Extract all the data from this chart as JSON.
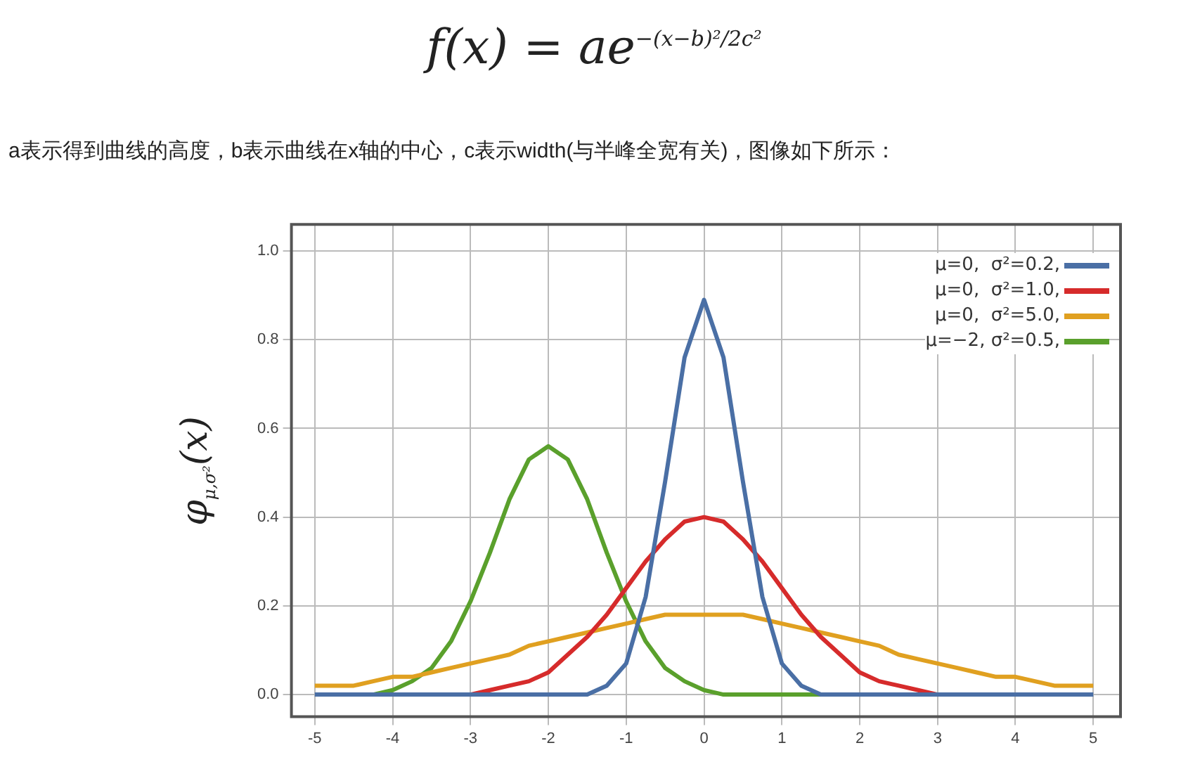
{
  "chart_data": {
    "type": "line",
    "title": "f(x) = ae$^{−(x−b)²/2c²}$",
    "subtitle": "a表示得到曲线的高度，b表示曲线在x轴的中心，c表示width(与半峰全宽有关)，图像如下所示：",
    "ylabel": "φ$_{μ,σ²}$(x)",
    "x": [
      -5,
      -4.75,
      -4.5,
      -4.25,
      -4,
      -3.75,
      -3.5,
      -3.25,
      -3,
      -2.75,
      -2.5,
      -2.25,
      -2,
      -1.75,
      -1.5,
      -1.25,
      -1,
      -0.75,
      -0.5,
      -0.25,
      0,
      0.25,
      0.5,
      0.75,
      1,
      1.25,
      1.5,
      1.75,
      2,
      2.25,
      2.5,
      2.75,
      3,
      3.25,
      3.5,
      3.75,
      4,
      4.25,
      4.5,
      4.75,
      5
    ],
    "series": [
      {
        "name": "μ=0,  σ²=0.2,",
        "color": "#4a6fa5",
        "values": [
          0,
          0,
          0,
          0,
          0,
          0,
          0,
          0,
          0,
          0,
          0,
          0,
          0,
          0,
          0,
          0.02,
          0.07,
          0.22,
          0.48,
          0.76,
          0.89,
          0.76,
          0.48,
          0.22,
          0.07,
          0.02,
          0,
          0,
          0,
          0,
          0,
          0,
          0,
          0,
          0,
          0,
          0,
          0,
          0,
          0,
          0
        ]
      },
      {
        "name": "μ=0,  σ²=1.0,",
        "color": "#d62b2b",
        "values": [
          null,
          null,
          null,
          null,
          null,
          null,
          null,
          0,
          0,
          0.01,
          0.02,
          0.03,
          0.05,
          0.09,
          0.13,
          0.18,
          0.24,
          0.3,
          0.35,
          0.39,
          0.4,
          0.39,
          0.35,
          0.3,
          0.24,
          0.18,
          0.13,
          0.09,
          0.05,
          0.03,
          0.02,
          0.01,
          0,
          0,
          null,
          null,
          null,
          null,
          null,
          null,
          null
        ]
      },
      {
        "name": "μ=0,  σ²=5.0,",
        "color": "#e0a020",
        "values": [
          0.02,
          0.02,
          0.02,
          0.03,
          0.04,
          0.04,
          0.05,
          0.06,
          0.07,
          0.08,
          0.09,
          0.11,
          0.12,
          0.13,
          0.14,
          0.15,
          0.16,
          0.17,
          0.18,
          0.18,
          0.18,
          0.18,
          0.18,
          0.17,
          0.16,
          0.15,
          0.14,
          0.13,
          0.12,
          0.11,
          0.09,
          0.08,
          0.07,
          0.06,
          0.05,
          0.04,
          0.04,
          0.03,
          0.02,
          0.02,
          0.02
        ]
      },
      {
        "name": "μ=−2, σ²=0.5,",
        "color": "#5aa02c",
        "values": [
          null,
          null,
          0,
          0,
          0.01,
          0.03,
          0.06,
          0.12,
          0.21,
          0.32,
          0.44,
          0.53,
          0.56,
          0.53,
          0.44,
          0.32,
          0.21,
          0.12,
          0.06,
          0.03,
          0.01,
          0,
          0,
          0,
          0,
          0,
          0,
          0,
          null,
          null,
          null,
          null,
          null,
          null,
          null,
          null,
          null,
          null,
          null,
          null,
          null
        ]
      }
    ],
    "xlim": [
      -5.3,
      5.35
    ],
    "xticks": [
      -5,
      -4,
      -3,
      -2,
      -1,
      0,
      1,
      2,
      3,
      4,
      5
    ],
    "ylim": [
      -0.05,
      1.06
    ],
    "yticks": [
      {
        "value": 0,
        "label": "0.0"
      },
      {
        "value": 0.2,
        "label": "0.2"
      },
      {
        "value": 0.4,
        "label": "0.4"
      },
      {
        "value": 0.6,
        "label": "0.6"
      },
      {
        "value": 0.8,
        "label": "0.8"
      },
      {
        "value": 1,
        "label": "1.0"
      }
    ],
    "grid": true,
    "legend": "top right",
    "marker": "none",
    "line_style": "solid"
  }
}
